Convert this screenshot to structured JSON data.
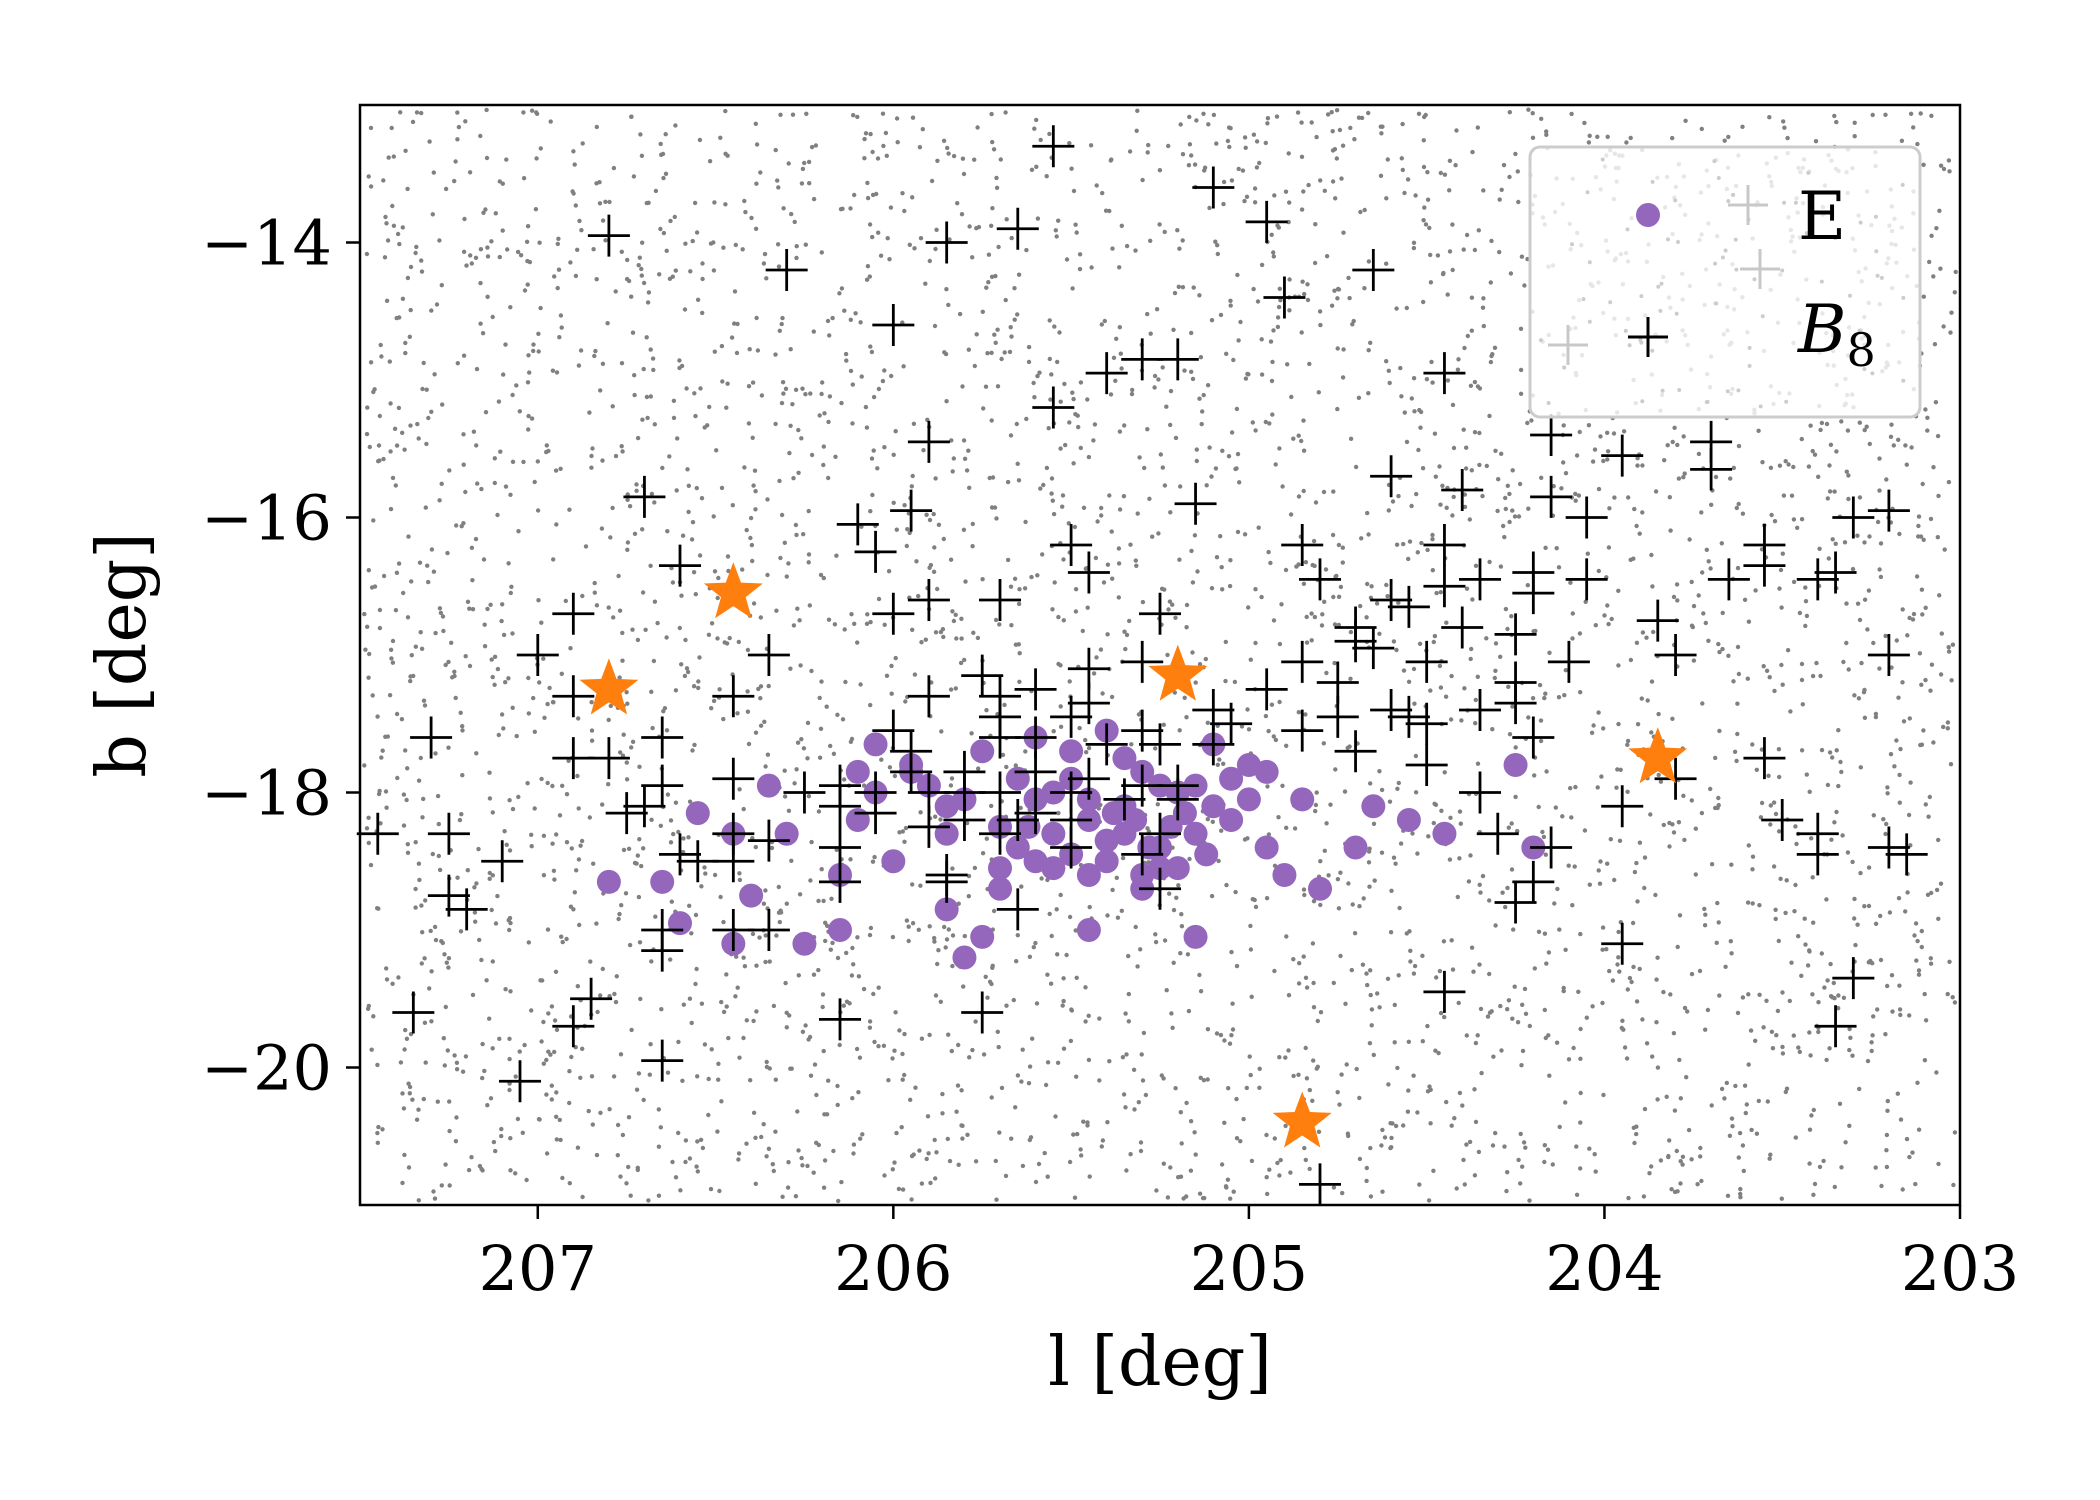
{
  "chart_data": {
    "type": "scatter",
    "xlabel": "l [deg]",
    "ylabel": "b [deg]",
    "xlim": [
      207.5,
      203.0
    ],
    "ylim": [
      -21.0,
      -13.0
    ],
    "x_inverted": true,
    "x_ticks": [
      "207",
      "206",
      "205",
      "204",
      "203"
    ],
    "y_ticks": [
      "−14",
      "−16",
      "−18",
      "−20"
    ],
    "x_tick_values": [
      207,
      206,
      205,
      204,
      203
    ],
    "y_tick_values": [
      -14,
      -16,
      -18,
      -20
    ],
    "grid": false,
    "legend_position": "top-right",
    "colors": {
      "E": "#9467bd",
      "B8": "#000000",
      "background": "#808080",
      "stars": "#ff7f0e"
    },
    "background_points": {
      "description_count": 4000,
      "color": "#808080"
    },
    "series": [
      {
        "name": "E",
        "marker": "circle",
        "color": "#9467bd",
        "points": [
          [
            206.8,
            -18.65
          ],
          [
            206.65,
            -18.65
          ],
          [
            206.6,
            -18.95
          ],
          [
            206.55,
            -18.15
          ],
          [
            206.45,
            -18.3
          ],
          [
            206.45,
            -19.1
          ],
          [
            206.4,
            -18.75
          ],
          [
            206.35,
            -17.95
          ],
          [
            206.3,
            -18.3
          ],
          [
            206.25,
            -19.1
          ],
          [
            206.15,
            -18.6
          ],
          [
            206.1,
            -18.2
          ],
          [
            206.15,
            -19.0
          ],
          [
            206.05,
            -17.65
          ],
          [
            206.0,
            -18.5
          ],
          [
            205.95,
            -17.8
          ],
          [
            205.85,
            -18.3
          ],
          [
            205.95,
            -17.85
          ],
          [
            205.85,
            -18.85
          ],
          [
            205.8,
            -19.2
          ],
          [
            205.75,
            -19.05
          ],
          [
            205.7,
            -18.55
          ],
          [
            205.7,
            -18.7
          ],
          [
            205.65,
            -18.4
          ],
          [
            205.6,
            -17.6
          ],
          [
            205.55,
            -18.3
          ],
          [
            205.5,
            -17.7
          ],
          [
            205.45,
            -18.6
          ],
          [
            205.4,
            -18.5
          ],
          [
            205.4,
            -17.55
          ],
          [
            205.35,
            -18.1
          ],
          [
            205.3,
            -18.6
          ],
          [
            205.25,
            -18.4
          ],
          [
            205.2,
            -18.0
          ],
          [
            205.15,
            -18.3
          ],
          [
            205.1,
            -17.65
          ],
          [
            205.05,
            -18.2
          ],
          [
            205.0,
            -18.05
          ],
          [
            204.95,
            -18.4
          ],
          [
            204.9,
            -18.6
          ],
          [
            204.85,
            -18.05
          ],
          [
            204.8,
            -18.7
          ],
          [
            204.7,
            -18.4
          ],
          [
            204.65,
            -18.1
          ],
          [
            204.55,
            -18.2
          ],
          [
            204.45,
            -18.3
          ],
          [
            204.25,
            -17.8
          ],
          [
            204.2,
            -18.4
          ],
          [
            205.45,
            -19.0
          ],
          [
            205.15,
            -19.05
          ],
          [
            205.35,
            -18.3
          ],
          [
            205.3,
            -18.7
          ],
          [
            205.25,
            -18.55
          ],
          [
            205.5,
            -18.45
          ],
          [
            205.45,
            -18.2
          ],
          [
            205.28,
            -18.4
          ],
          [
            205.32,
            -18.2
          ],
          [
            205.22,
            -18.25
          ],
          [
            205.18,
            -18.15
          ],
          [
            205.4,
            -18.35
          ],
          [
            205.6,
            -18.5
          ],
          [
            205.55,
            -18.55
          ],
          [
            205.25,
            -17.95
          ],
          [
            205.3,
            -17.85
          ],
          [
            205.35,
            -17.75
          ],
          [
            205.15,
            -17.95
          ],
          [
            205.1,
            -18.1
          ],
          [
            205.05,
            -17.9
          ],
          [
            205.0,
            -17.8
          ],
          [
            204.95,
            -17.85
          ],
          [
            205.65,
            -17.9
          ],
          [
            205.75,
            -17.7
          ],
          [
            205.8,
            -18.05
          ],
          [
            205.55,
            -18.0
          ],
          [
            205.5,
            -17.9
          ],
          [
            205.12,
            -18.45
          ],
          [
            205.2,
            -18.55
          ],
          [
            205.38,
            -18.15
          ],
          [
            205.45,
            -18.05
          ],
          [
            205.62,
            -18.25
          ],
          [
            206.05,
            -18.0
          ],
          [
            206.1,
            -17.85
          ],
          [
            205.9,
            -17.95
          ],
          [
            205.85,
            -18.1
          ],
          [
            205.7,
            -18.25
          ],
          [
            205.6,
            -18.05
          ]
        ]
      },
      {
        "name": "B8",
        "marker": "plus",
        "color": "#000000",
        "points": [
          [
            205.55,
            -13.3
          ],
          [
            205.1,
            -13.6
          ],
          [
            204.95,
            -13.85
          ],
          [
            205.65,
            -13.9
          ],
          [
            206.8,
            -13.95
          ],
          [
            205.85,
            -14.0
          ],
          [
            206.3,
            -14.2
          ],
          [
            204.65,
            -14.2
          ],
          [
            204.9,
            -14.4
          ],
          [
            206.0,
            -14.6
          ],
          [
            205.3,
            -14.85
          ],
          [
            205.2,
            -14.85
          ],
          [
            205.4,
            -14.95
          ],
          [
            204.45,
            -14.95
          ],
          [
            205.55,
            -15.2
          ],
          [
            205.9,
            -15.45
          ],
          [
            204.15,
            -15.4
          ],
          [
            203.7,
            -15.45
          ],
          [
            203.95,
            -15.55
          ],
          [
            203.7,
            -15.65
          ],
          [
            204.6,
            -15.7
          ],
          [
            204.4,
            -15.8
          ],
          [
            204.15,
            -15.85
          ],
          [
            206.7,
            -15.85
          ],
          [
            205.15,
            -15.9
          ],
          [
            204.05,
            -16.0
          ],
          [
            206.1,
            -16.05
          ],
          [
            205.95,
            -15.95
          ],
          [
            203.3,
            -16.0
          ],
          [
            203.2,
            -15.95
          ],
          [
            206.05,
            -16.25
          ],
          [
            205.5,
            -16.2
          ],
          [
            204.85,
            -16.2
          ],
          [
            204.45,
            -16.2
          ],
          [
            203.55,
            -16.2
          ],
          [
            203.55,
            -16.35
          ],
          [
            206.6,
            -16.35
          ],
          [
            205.45,
            -16.4
          ],
          [
            204.8,
            -16.45
          ],
          [
            204.2,
            -16.4
          ],
          [
            204.05,
            -16.45
          ],
          [
            203.65,
            -16.45
          ],
          [
            203.4,
            -16.45
          ],
          [
            203.35,
            -16.4
          ],
          [
            204.45,
            -16.5
          ],
          [
            204.35,
            -16.45
          ],
          [
            204.2,
            -16.55
          ],
          [
            205.9,
            -16.6
          ],
          [
            205.7,
            -16.6
          ],
          [
            204.6,
            -16.6
          ],
          [
            204.55,
            -16.65
          ],
          [
            206.0,
            -16.7
          ],
          [
            205.25,
            -16.7
          ],
          [
            206.9,
            -16.7
          ],
          [
            204.7,
            -16.8
          ],
          [
            204.4,
            -16.8
          ],
          [
            204.25,
            -16.85
          ],
          [
            203.85,
            -16.75
          ],
          [
            204.7,
            -16.9
          ],
          [
            204.65,
            -16.95
          ],
          [
            207.0,
            -17.0
          ],
          [
            206.35,
            -17.0
          ],
          [
            205.3,
            -17.05
          ],
          [
            204.85,
            -17.05
          ],
          [
            204.5,
            -17.05
          ],
          [
            204.1,
            -17.05
          ],
          [
            203.8,
            -17.0
          ],
          [
            203.2,
            -17.0
          ],
          [
            205.45,
            -17.1
          ],
          [
            205.75,
            -17.15
          ],
          [
            205.7,
            -17.3
          ],
          [
            205.6,
            -17.25
          ],
          [
            204.95,
            -17.25
          ],
          [
            204.75,
            -17.2
          ],
          [
            204.25,
            -17.2
          ],
          [
            206.9,
            -17.3
          ],
          [
            206.45,
            -17.3
          ],
          [
            205.9,
            -17.3
          ],
          [
            205.45,
            -17.35
          ],
          [
            205.1,
            -17.4
          ],
          [
            204.6,
            -17.4
          ],
          [
            204.55,
            -17.45
          ],
          [
            204.35,
            -17.4
          ],
          [
            204.25,
            -17.35
          ],
          [
            205.7,
            -17.45
          ],
          [
            205.5,
            -17.45
          ],
          [
            205.05,
            -17.5
          ],
          [
            204.75,
            -17.45
          ],
          [
            204.5,
            -17.5
          ],
          [
            206.0,
            -17.55
          ],
          [
            205.3,
            -17.55
          ],
          [
            204.85,
            -17.55
          ],
          [
            204.2,
            -17.6
          ],
          [
            207.3,
            -17.6
          ],
          [
            206.65,
            -17.6
          ],
          [
            205.7,
            -17.6
          ],
          [
            205.6,
            -17.6
          ],
          [
            205.4,
            -17.65
          ],
          [
            205.25,
            -17.65
          ],
          [
            205.1,
            -17.65
          ],
          [
            206.9,
            -17.75
          ],
          [
            206.8,
            -17.75
          ],
          [
            205.95,
            -17.7
          ],
          [
            204.7,
            -17.7
          ],
          [
            204.5,
            -17.8
          ],
          [
            205.8,
            -17.85
          ],
          [
            205.95,
            -17.85
          ],
          [
            205.6,
            -17.85
          ],
          [
            205.45,
            -17.9
          ],
          [
            205.3,
            -17.95
          ],
          [
            205.2,
            -17.95
          ],
          [
            206.65,
            -17.95
          ],
          [
            206.45,
            -17.9
          ],
          [
            203.55,
            -17.75
          ],
          [
            203.8,
            -17.9
          ],
          [
            206.25,
            -18.0
          ],
          [
            206.15,
            -17.95
          ],
          [
            206.05,
            -18.0
          ],
          [
            205.9,
            -18.0
          ],
          [
            205.8,
            -18.0
          ],
          [
            205.7,
            -18.0
          ],
          [
            205.5,
            -18.0
          ],
          [
            205.35,
            -18.05
          ],
          [
            205.2,
            -18.05
          ],
          [
            204.35,
            -18.0
          ],
          [
            203.95,
            -18.1
          ],
          [
            206.15,
            -18.1
          ],
          [
            206.05,
            -18.15
          ],
          [
            205.8,
            -18.2
          ],
          [
            205.65,
            -18.2
          ],
          [
            205.5,
            -18.2
          ],
          [
            206.75,
            -18.15
          ],
          [
            206.7,
            -18.1
          ],
          [
            205.6,
            -18.15
          ],
          [
            207.45,
            -18.3
          ],
          [
            207.25,
            -18.3
          ],
          [
            206.45,
            -18.3
          ],
          [
            206.35,
            -18.35
          ],
          [
            205.9,
            -18.25
          ],
          [
            205.7,
            -18.3
          ],
          [
            205.25,
            -18.3
          ],
          [
            204.3,
            -18.3
          ],
          [
            204.15,
            -18.4
          ],
          [
            203.5,
            -18.2
          ],
          [
            203.4,
            -18.3
          ],
          [
            206.6,
            -18.45
          ],
          [
            206.55,
            -18.5
          ],
          [
            206.15,
            -18.4
          ],
          [
            205.5,
            -18.4
          ],
          [
            205.3,
            -18.45
          ],
          [
            203.4,
            -18.45
          ],
          [
            203.2,
            -18.4
          ],
          [
            203.15,
            -18.45
          ],
          [
            207.1,
            -18.5
          ],
          [
            206.45,
            -18.5
          ],
          [
            205.85,
            -18.6
          ],
          [
            205.25,
            -18.7
          ],
          [
            206.15,
            -18.65
          ],
          [
            204.2,
            -18.65
          ],
          [
            204.25,
            -18.8
          ],
          [
            207.25,
            -18.75
          ],
          [
            207.2,
            -18.85
          ],
          [
            205.85,
            -18.65
          ],
          [
            205.65,
            -18.85
          ],
          [
            206.45,
            -19.0
          ],
          [
            206.35,
            -19.0
          ],
          [
            206.65,
            -19.15
          ],
          [
            206.65,
            -19.0
          ],
          [
            203.95,
            -19.1
          ],
          [
            206.85,
            -19.5
          ],
          [
            204.45,
            -19.45
          ],
          [
            203.3,
            -19.35
          ],
          [
            207.35,
            -19.6
          ],
          [
            205.75,
            -19.6
          ],
          [
            206.15,
            -19.65
          ],
          [
            206.9,
            -19.7
          ],
          [
            203.35,
            -19.7
          ],
          [
            206.65,
            -19.95
          ],
          [
            207.05,
            -20.1
          ],
          [
            204.8,
            -20.85
          ]
        ]
      },
      {
        "name": "stars",
        "marker": "star",
        "color": "#ff7f0e",
        "points": [
          [
            206.45,
            -16.55
          ],
          [
            206.8,
            -17.25
          ],
          [
            205.2,
            -17.15
          ],
          [
            203.85,
            -17.75
          ],
          [
            204.85,
            -20.4
          ]
        ]
      }
    ]
  },
  "legend": {
    "items": [
      {
        "label": "E"
      },
      {
        "label": "B₈"
      }
    ]
  }
}
